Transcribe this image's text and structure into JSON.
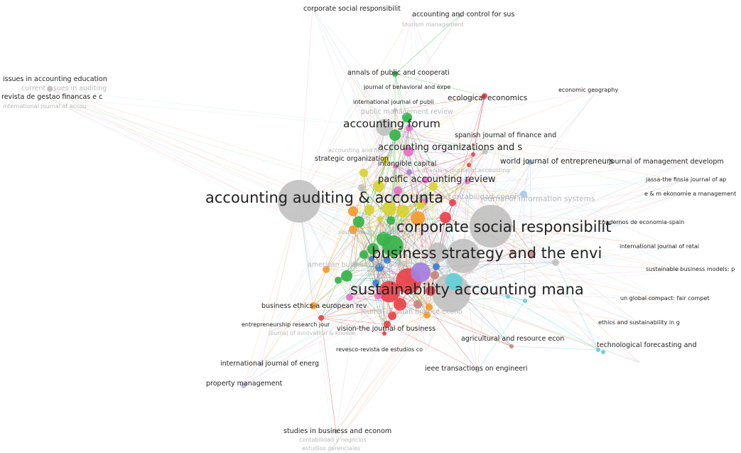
{
  "labels": [
    {
      "text": "corporate social responsibilit",
      "size": "xs"
    },
    {
      "text": "accounting and control for sus",
      "size": "xs"
    },
    {
      "text": "tourism management",
      "size": "xxs",
      "faded": true
    },
    {
      "text": "issues in accounting education",
      "size": "xs"
    },
    {
      "text": "current issues in auditing",
      "size": "xs",
      "faded": true
    },
    {
      "text": "revista de gestao financas e c",
      "size": "xs"
    },
    {
      "text": "international journal of accou",
      "size": "xxs",
      "faded": true
    },
    {
      "text": "annals of public and cooperati",
      "size": "xs"
    },
    {
      "text": "journal of behavioral and expe",
      "size": "xxs"
    },
    {
      "text": "international journal of publi",
      "size": "xxs"
    },
    {
      "text": "public management review",
      "size": "xs",
      "faded": true
    },
    {
      "text": "ecological economics",
      "size": "s"
    },
    {
      "text": "economic geography",
      "size": "xxs"
    },
    {
      "text": "accounting forum",
      "size": "l"
    },
    {
      "text": "spanish journal of finance and",
      "size": "xs"
    },
    {
      "text": "accounting organizations and s",
      "size": "m"
    },
    {
      "text": "accounting and fina",
      "size": "xxs",
      "faded": true
    },
    {
      "text": "strategic organization",
      "size": "xs"
    },
    {
      "text": "intangible capital",
      "size": "xs"
    },
    {
      "text": "world journal of entrepreneurs",
      "size": "s"
    },
    {
      "text": "journal of management developm",
      "size": "xs"
    },
    {
      "text": "abacus-a journal of accounting",
      "size": "xxs",
      "faded": true
    },
    {
      "text": "pacific accounting review",
      "size": "m"
    },
    {
      "text": "jassa-the finsia journal of ap",
      "size": "xxs"
    },
    {
      "text": "revista de contabilidad-spanis",
      "size": "s",
      "faded": true
    },
    {
      "text": "journal of information systems",
      "size": "s",
      "faded": true
    },
    {
      "text": "e & m ekonomie a management",
      "size": "xxs"
    },
    {
      "text": "accounting auditing & accounta",
      "size": "xl"
    },
    {
      "text": "corporate social responsibilit",
      "size": "xl"
    },
    {
      "text": "cuadernos de economia-spain",
      "size": "xxs"
    },
    {
      "text": "sustainability accounting",
      "size": "xxs",
      "faded": true
    },
    {
      "text": "business strategy and the envi",
      "size": "xl"
    },
    {
      "text": "international journal of retai",
      "size": "xxs"
    },
    {
      "text": "american business law journal",
      "size": "xs",
      "faded": true
    },
    {
      "text": "sustainable business models: p",
      "size": "xxs"
    },
    {
      "text": "sustainability accounting mana",
      "size": "xl"
    },
    {
      "text": "un global compact: fair compet",
      "size": "xxs"
    },
    {
      "text": "business ethics-a european rev",
      "size": "xs"
    },
    {
      "text": "journal of asian finance econo",
      "size": "xs",
      "faded": true
    },
    {
      "text": "entrepreneurship research jour",
      "size": "xxs"
    },
    {
      "text": "vision-the journal of business",
      "size": "xs"
    },
    {
      "text": "journal of innovation & knowle",
      "size": "xxs",
      "faded": true
    },
    {
      "text": "ethics and sustainability in g",
      "size": "xxs"
    },
    {
      "text": "agricultural and resource econ",
      "size": "xs"
    },
    {
      "text": "technological forecasting and",
      "size": "xs"
    },
    {
      "text": "revesco-revista de estudios co",
      "size": "xxs"
    },
    {
      "text": "international journal of energ",
      "size": "xs"
    },
    {
      "text": "ieee transactions on engineeri",
      "size": "xs"
    },
    {
      "text": "property management",
      "size": "xs"
    },
    {
      "text": "studies in business and econom",
      "size": "xs"
    },
    {
      "text": "contabilidad y negocios",
      "size": "xxs",
      "faded": true
    },
    {
      "text": "estudios gerenciales",
      "size": "xxs",
      "faded": true
    }
  ],
  "nodes": [
    {
      "name": "accounting-auditing-accountability",
      "cluster": "gray",
      "weight": 5
    },
    {
      "name": "corporate-social-responsibility-env",
      "cluster": "gray",
      "weight": 6
    },
    {
      "name": "business-strategy-environment",
      "cluster": "gray",
      "weight": 5
    },
    {
      "name": "sustainability-accounting-management",
      "cluster": "gray",
      "weight": 5
    },
    {
      "name": "accounting-forum",
      "cluster": "gray",
      "weight": 3
    },
    {
      "name": "red-hub",
      "cluster": "red",
      "weight": 4
    },
    {
      "name": "purple-hub",
      "cluster": "purple",
      "weight": 3
    },
    {
      "name": "teal-hub",
      "cluster": "teal",
      "weight": 3
    },
    {
      "name": "green-hub",
      "cluster": "green",
      "weight": 3
    }
  ],
  "colors": {
    "red": "#e8424a",
    "green": "#35b34a",
    "yellow": "#d7d330",
    "orange": "#f39a2b",
    "blue": "#3f7fd1",
    "lightblue": "#a9c8ee",
    "pink": "#e66fc6",
    "purple": "#a47fe0",
    "teal": "#63cfd8",
    "gray": "#bdbdbd",
    "brown": "#c7877f",
    "lavender": "#c6b6e8"
  }
}
